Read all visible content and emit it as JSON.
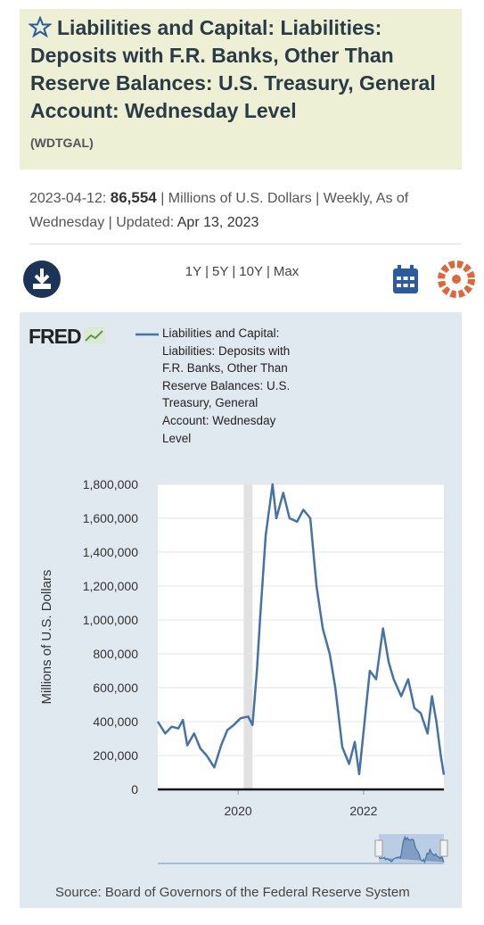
{
  "header": {
    "title": "Liabilities and Capital: Liabilities: Deposits with F.R. Banks, Other Than Reserve Balances: U.S. Treasury, General Account: Wednesday Level",
    "series_id": "(WDTGAL)"
  },
  "meta": {
    "date": "2023-04-12:",
    "value": "86,554",
    "details": "| Millions of U.S. Dollars | Weekly, As of Wednesday | Updated:",
    "updated": "Apr 13, 2023"
  },
  "range_options": [
    "1Y",
    "5Y",
    "10Y",
    "Max"
  ],
  "range_separator": "|",
  "chart_data": {
    "type": "line",
    "logo": "FRED",
    "ylabel": "Millions of U.S. Dollars",
    "source": "Source: Board of Governors of the Federal Reserve System",
    "x": [
      2018.72,
      2018.84,
      2018.94,
      2019.05,
      2019.12,
      2019.19,
      2019.3,
      2019.4,
      2019.5,
      2019.62,
      2019.73,
      2019.83,
      2019.93,
      2020.04,
      2020.16,
      2020.23,
      2020.3,
      2020.35,
      2020.44,
      2020.55,
      2020.61,
      2020.72,
      2020.82,
      2020.94,
      2021.04,
      2021.15,
      2021.25,
      2021.35,
      2021.46,
      2021.55,
      2021.66,
      2021.77,
      2021.86,
      2021.93,
      2022.03,
      2022.1,
      2022.2,
      2022.31,
      2022.4,
      2022.48,
      2022.6,
      2022.71,
      2022.81,
      2022.91,
      2023.02,
      2023.09,
      2023.16,
      2023.23,
      2023.28
    ],
    "series": [
      {
        "name": "Liabilities and Capital: Liabilities: Deposits with F.R. Banks, Other Than Reserve Balances: U.S. Treasury, General Account: Wednesday Level",
        "color": "#4572a7",
        "values": [
          400000,
          330000,
          370000,
          360000,
          410000,
          260000,
          330000,
          240000,
          200000,
          130000,
          260000,
          350000,
          380000,
          420000,
          430000,
          380000,
          700000,
          1000000,
          1500000,
          1800000,
          1600000,
          1750000,
          1600000,
          1580000,
          1650000,
          1600000,
          1200000,
          950000,
          800000,
          600000,
          250000,
          150000,
          280000,
          90000,
          450000,
          700000,
          650000,
          950000,
          750000,
          650000,
          550000,
          650000,
          480000,
          450000,
          330000,
          550000,
          400000,
          200000,
          86554
        ]
      }
    ],
    "xlim": [
      2018.72,
      2023.28
    ],
    "xticks": [
      2020,
      2022
    ],
    "ylim": [
      0,
      1800000
    ],
    "yticks": [
      0,
      {
        "value": 200000,
        "label": "200,000"
      },
      {
        "value": 400000,
        "label": "400,000"
      },
      {
        "value": 600000,
        "label": "600,000"
      },
      {
        "value": 800000,
        "label": "800,000"
      },
      {
        "value": 1000000,
        "label": "1,000,000"
      },
      {
        "value": 1200000,
        "label": "1,200,000"
      },
      {
        "value": 1400000,
        "label": "1,400,000"
      },
      {
        "value": 1600000,
        "label": "1,600,000"
      },
      {
        "value": 1800000,
        "label": "1,800,000"
      }
    ],
    "recession": [
      2020.09,
      2020.23
    ]
  }
}
